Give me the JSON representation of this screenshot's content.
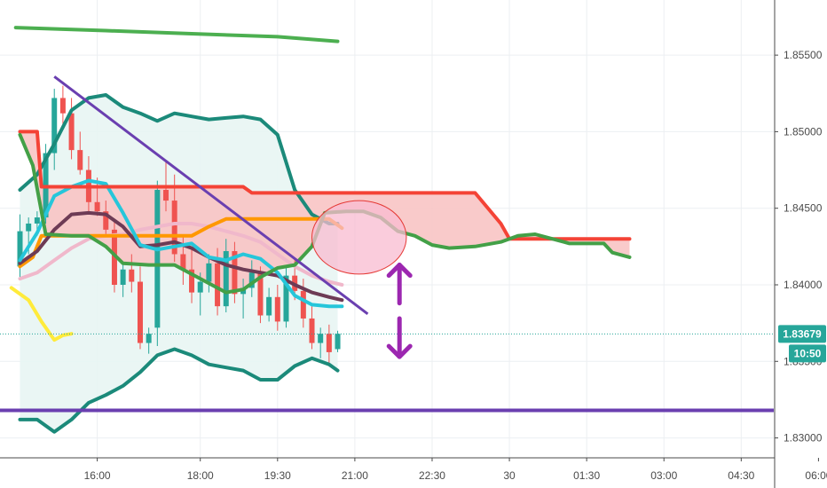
{
  "chart_data": {
    "type": "line",
    "title": "",
    "xlabel": "",
    "ylabel": "",
    "grid": true,
    "x_axis": {
      "range": [
        "14:30",
        "07:00"
      ],
      "ticks": [
        {
          "label": "16:00",
          "t": 90
        },
        {
          "label": "18:00",
          "t": 210
        },
        {
          "label": "19:30",
          "t": 300
        },
        {
          "label": "21:00",
          "t": 390
        },
        {
          "label": "22:30",
          "t": 480
        },
        {
          "label": "30",
          "t": 570
        },
        {
          "label": "01:30",
          "t": 660
        },
        {
          "label": "03:00",
          "t": 750
        },
        {
          "label": "04:30",
          "t": 840
        },
        {
          "label": "06:00",
          "t": 930
        }
      ]
    },
    "y_axis": {
      "range": [
        1.8287,
        1.8586
      ],
      "ticks": [
        "1.85500",
        "1.85000",
        "1.84500",
        "1.84000",
        "1.83500",
        "1.83000"
      ],
      "tick_values": [
        1.855,
        1.85,
        1.845,
        1.84,
        1.835,
        1.83
      ]
    },
    "current_price": {
      "label": "1.83679",
      "value": 1.83679,
      "color": "#26a69a"
    },
    "countdown": {
      "label": "10:50",
      "color": "#26a69a"
    },
    "candles": [
      {
        "t": 0,
        "o": 1.8412,
        "h": 1.8446,
        "l": 1.8405,
        "c": 1.8435
      },
      {
        "t": 10,
        "o": 1.8435,
        "h": 1.8444,
        "l": 1.842,
        "c": 1.844
      },
      {
        "t": 20,
        "o": 1.844,
        "h": 1.8448,
        "l": 1.8432,
        "c": 1.8444
      },
      {
        "t": 30,
        "o": 1.8444,
        "h": 1.8492,
        "l": 1.844,
        "c": 1.8486
      },
      {
        "t": 40,
        "o": 1.8486,
        "h": 1.8528,
        "l": 1.8475,
        "c": 1.8522
      },
      {
        "t": 50,
        "o": 1.8522,
        "h": 1.853,
        "l": 1.8505,
        "c": 1.8512
      },
      {
        "t": 60,
        "o": 1.8512,
        "h": 1.8522,
        "l": 1.8482,
        "c": 1.8488
      },
      {
        "t": 70,
        "o": 1.8488,
        "h": 1.85,
        "l": 1.8472,
        "c": 1.8475
      },
      {
        "t": 80,
        "o": 1.8475,
        "h": 1.8484,
        "l": 1.8448,
        "c": 1.8454
      },
      {
        "t": 90,
        "o": 1.8454,
        "h": 1.847,
        "l": 1.8445,
        "c": 1.8448
      },
      {
        "t": 100,
        "o": 1.8448,
        "h": 1.8455,
        "l": 1.8432,
        "c": 1.8436
      },
      {
        "t": 110,
        "o": 1.8436,
        "h": 1.8442,
        "l": 1.8395,
        "c": 1.84
      },
      {
        "t": 120,
        "o": 1.84,
        "h": 1.8414,
        "l": 1.8392,
        "c": 1.841
      },
      {
        "t": 130,
        "o": 1.841,
        "h": 1.842,
        "l": 1.8395,
        "c": 1.8402
      },
      {
        "t": 140,
        "o": 1.8402,
        "h": 1.8412,
        "l": 1.8358,
        "c": 1.8362
      },
      {
        "t": 150,
        "o": 1.8362,
        "h": 1.8372,
        "l": 1.8355,
        "c": 1.8368
      },
      {
        "t": 160,
        "o": 1.8372,
        "h": 1.8468,
        "l": 1.836,
        "c": 1.8462
      },
      {
        "t": 170,
        "o": 1.8462,
        "h": 1.848,
        "l": 1.8448,
        "c": 1.8455
      },
      {
        "t": 180,
        "o": 1.8455,
        "h": 1.8472,
        "l": 1.8415,
        "c": 1.842
      },
      {
        "t": 190,
        "o": 1.842,
        "h": 1.8432,
        "l": 1.84,
        "c": 1.841
      },
      {
        "t": 200,
        "o": 1.841,
        "h": 1.8424,
        "l": 1.8388,
        "c": 1.8395
      },
      {
        "t": 210,
        "o": 1.8395,
        "h": 1.8408,
        "l": 1.838,
        "c": 1.8402
      },
      {
        "t": 220,
        "o": 1.8402,
        "h": 1.842,
        "l": 1.8395,
        "c": 1.8414
      },
      {
        "t": 230,
        "o": 1.8414,
        "h": 1.8424,
        "l": 1.838,
        "c": 1.8386
      },
      {
        "t": 240,
        "o": 1.8386,
        "h": 1.843,
        "l": 1.8382,
        "c": 1.8422
      },
      {
        "t": 250,
        "o": 1.8422,
        "h": 1.8428,
        "l": 1.8388,
        "c": 1.8394
      },
      {
        "t": 260,
        "o": 1.8394,
        "h": 1.8404,
        "l": 1.8378,
        "c": 1.8398
      },
      {
        "t": 270,
        "o": 1.8398,
        "h": 1.8416,
        "l": 1.8392,
        "c": 1.8408
      },
      {
        "t": 280,
        "o": 1.8408,
        "h": 1.8412,
        "l": 1.8375,
        "c": 1.838
      },
      {
        "t": 290,
        "o": 1.838,
        "h": 1.8398,
        "l": 1.8376,
        "c": 1.8392
      },
      {
        "t": 300,
        "o": 1.8392,
        "h": 1.84,
        "l": 1.837,
        "c": 1.8376
      },
      {
        "t": 310,
        "o": 1.8376,
        "h": 1.8412,
        "l": 1.8372,
        "c": 1.8406
      },
      {
        "t": 320,
        "o": 1.8406,
        "h": 1.8416,
        "l": 1.839,
        "c": 1.8396
      },
      {
        "t": 330,
        "o": 1.8396,
        "h": 1.8404,
        "l": 1.8372,
        "c": 1.8378
      },
      {
        "t": 340,
        "o": 1.8378,
        "h": 1.8386,
        "l": 1.8358,
        "c": 1.8362
      },
      {
        "t": 350,
        "o": 1.8362,
        "h": 1.8372,
        "l": 1.8352,
        "c": 1.8368
      },
      {
        "t": 360,
        "o": 1.8368,
        "h": 1.8374,
        "l": 1.8348,
        "c": 1.8356
      },
      {
        "t": 370,
        "o": 1.8358,
        "h": 1.837,
        "l": 1.8356,
        "c": 1.8368
      }
    ],
    "series": [
      {
        "role": "upper-envelope",
        "color": "#4caf50",
        "width": 4,
        "points": [
          [
            -5,
            1.8568
          ],
          [
            100,
            1.8566
          ],
          [
            200,
            1.8564
          ],
          [
            300,
            1.8562
          ],
          [
            370,
            1.8559
          ]
        ]
      },
      {
        "role": "bollinger-upper",
        "color": "#1b8a7a",
        "width": 4,
        "points": [
          [
            0,
            1.8462
          ],
          [
            20,
            1.8472
          ],
          [
            40,
            1.8492
          ],
          [
            60,
            1.8514
          ],
          [
            80,
            1.8522
          ],
          [
            100,
            1.8524
          ],
          [
            120,
            1.8516
          ],
          [
            140,
            1.8512
          ],
          [
            160,
            1.8507
          ],
          [
            180,
            1.8512
          ],
          [
            200,
            1.851
          ],
          [
            220,
            1.8508
          ],
          [
            240,
            1.8509
          ],
          [
            260,
            1.851
          ],
          [
            280,
            1.8508
          ],
          [
            300,
            1.8498
          ],
          [
            320,
            1.8462
          ],
          [
            340,
            1.8446
          ],
          [
            360,
            1.844
          ],
          [
            370,
            1.844
          ]
        ]
      },
      {
        "role": "bollinger-lower",
        "color": "#1b8a7a",
        "width": 4,
        "points": [
          [
            0,
            1.8312
          ],
          [
            20,
            1.8312
          ],
          [
            40,
            1.8304
          ],
          [
            60,
            1.8312
          ],
          [
            80,
            1.8323
          ],
          [
            100,
            1.8328
          ],
          [
            120,
            1.8334
          ],
          [
            140,
            1.8343
          ],
          [
            160,
            1.8354
          ],
          [
            180,
            1.8358
          ],
          [
            200,
            1.8354
          ],
          [
            220,
            1.8348
          ],
          [
            240,
            1.8346
          ],
          [
            260,
            1.8344
          ],
          [
            280,
            1.8338
          ],
          [
            300,
            1.8338
          ],
          [
            320,
            1.8347
          ],
          [
            340,
            1.8352
          ],
          [
            360,
            1.8348
          ],
          [
            370,
            1.8344
          ]
        ]
      },
      {
        "role": "ichimoku-span-a",
        "color": "#43a047",
        "width": 4,
        "points": [
          [
            0,
            1.8498
          ],
          [
            15,
            1.8478
          ],
          [
            30,
            1.8433
          ],
          [
            60,
            1.8432
          ],
          [
            80,
            1.8432
          ],
          [
            100,
            1.8425
          ],
          [
            120,
            1.8414
          ],
          [
            150,
            1.8413
          ],
          [
            180,
            1.8413
          ],
          [
            210,
            1.8404
          ],
          [
            240,
            1.8395
          ],
          [
            260,
            1.8397
          ],
          [
            280,
            1.8405
          ],
          [
            300,
            1.8411
          ],
          [
            320,
            1.8413
          ],
          [
            340,
            1.8425
          ],
          [
            355,
            1.8447
          ],
          [
            380,
            1.8448
          ],
          [
            400,
            1.8448
          ],
          [
            420,
            1.8444
          ],
          [
            440,
            1.8435
          ],
          [
            460,
            1.8432
          ],
          [
            480,
            1.8426
          ],
          [
            500,
            1.8424
          ],
          [
            530,
            1.8425
          ],
          [
            560,
            1.8428
          ],
          [
            580,
            1.8432
          ],
          [
            600,
            1.8433
          ],
          [
            620,
            1.843
          ],
          [
            640,
            1.8427
          ],
          [
            660,
            1.8427
          ],
          [
            680,
            1.8427
          ],
          [
            690,
            1.8421
          ],
          [
            710,
            1.8418
          ]
        ]
      },
      {
        "role": "ichimoku-span-b",
        "color": "#f44336",
        "width": 4,
        "points": [
          [
            0,
            1.85
          ],
          [
            20,
            1.85
          ],
          [
            25,
            1.8464
          ],
          [
            60,
            1.8464
          ],
          [
            100,
            1.8464
          ],
          [
            200,
            1.8464
          ],
          [
            260,
            1.8464
          ],
          [
            270,
            1.846
          ],
          [
            330,
            1.846
          ],
          [
            420,
            1.846
          ],
          [
            480,
            1.846
          ],
          [
            530,
            1.846
          ],
          [
            560,
            1.844
          ],
          [
            570,
            1.843
          ],
          [
            600,
            1.843
          ],
          [
            650,
            1.843
          ],
          [
            710,
            1.843
          ]
        ]
      },
      {
        "role": "base-line",
        "color": "#ff9800",
        "width": 4,
        "points": [
          [
            0,
            1.8412
          ],
          [
            15,
            1.8418
          ],
          [
            25,
            1.8432
          ],
          [
            60,
            1.8432
          ],
          [
            120,
            1.8432
          ],
          [
            200,
            1.8432
          ],
          [
            220,
            1.8438
          ],
          [
            240,
            1.8443
          ],
          [
            300,
            1.8443
          ],
          [
            360,
            1.8443
          ],
          [
            375,
            1.8437
          ]
        ]
      },
      {
        "role": "conversion-line",
        "color": "#26c6da",
        "width": 4,
        "points": [
          [
            0,
            1.8416
          ],
          [
            20,
            1.8434
          ],
          [
            40,
            1.8458
          ],
          [
            60,
            1.8464
          ],
          [
            80,
            1.8468
          ],
          [
            100,
            1.8466
          ],
          [
            120,
            1.8447
          ],
          [
            140,
            1.8426
          ],
          [
            160,
            1.8423
          ],
          [
            180,
            1.8425
          ],
          [
            200,
            1.8427
          ],
          [
            220,
            1.8418
          ],
          [
            240,
            1.8416
          ],
          [
            260,
            1.842
          ],
          [
            280,
            1.8417
          ],
          [
            300,
            1.8408
          ],
          [
            320,
            1.8393
          ],
          [
            340,
            1.8387
          ],
          [
            360,
            1.8386
          ],
          [
            375,
            1.8386
          ]
        ]
      },
      {
        "role": "moving-average-dark",
        "color": "#6d3b55",
        "width": 4,
        "points": [
          [
            0,
            1.8414
          ],
          [
            20,
            1.8422
          ],
          [
            40,
            1.8436
          ],
          [
            60,
            1.8446
          ],
          [
            80,
            1.8447
          ],
          [
            100,
            1.8446
          ],
          [
            120,
            1.8438
          ],
          [
            140,
            1.8425
          ],
          [
            160,
            1.8426
          ],
          [
            180,
            1.8428
          ],
          [
            200,
            1.8424
          ],
          [
            220,
            1.8418
          ],
          [
            240,
            1.8413
          ],
          [
            260,
            1.841
          ],
          [
            280,
            1.8408
          ],
          [
            300,
            1.8406
          ],
          [
            320,
            1.84
          ],
          [
            340,
            1.8395
          ],
          [
            360,
            1.8392
          ],
          [
            375,
            1.839
          ]
        ]
      },
      {
        "role": "moving-average-pink",
        "color": "#f0b8cb",
        "width": 4,
        "points": [
          [
            0,
            1.8404
          ],
          [
            20,
            1.8408
          ],
          [
            40,
            1.8416
          ],
          [
            60,
            1.8424
          ],
          [
            80,
            1.843
          ],
          [
            100,
            1.8432
          ],
          [
            120,
            1.8433
          ],
          [
            140,
            1.8436
          ],
          [
            160,
            1.8438
          ],
          [
            180,
            1.844
          ],
          [
            200,
            1.844
          ],
          [
            220,
            1.8438
          ],
          [
            240,
            1.8435
          ],
          [
            260,
            1.8432
          ],
          [
            280,
            1.8428
          ],
          [
            300,
            1.842
          ],
          [
            320,
            1.8412
          ],
          [
            340,
            1.8406
          ],
          [
            360,
            1.8402
          ],
          [
            375,
            1.84
          ]
        ]
      },
      {
        "role": "moving-average-yellow",
        "color": "#ffeb3b",
        "width": 4,
        "points": [
          [
            -10,
            1.8398
          ],
          [
            10,
            1.839
          ],
          [
            25,
            1.8376
          ],
          [
            40,
            1.8364
          ],
          [
            50,
            1.8367
          ],
          [
            60,
            1.8368
          ]
        ]
      }
    ],
    "shaded_areas": [
      {
        "role": "bollinger-fill",
        "color": "#e8f5f3",
        "between": [
          "bollinger-upper",
          "bollinger-lower"
        ]
      },
      {
        "role": "ichimoku-cloud",
        "color": "#f8c4c4",
        "between": [
          "ichimoku-span-a",
          "ichimoku-span-b"
        ]
      }
    ],
    "horizontal_lines": [
      {
        "role": "support-line",
        "color": "#6a3fb0",
        "y": 1.8318
      }
    ],
    "trend_lines": [
      {
        "role": "descending-trendline",
        "color": "#6a3fb0",
        "from": [
          40,
          1.8536
        ],
        "to": [
          405,
          1.8381
        ]
      }
    ],
    "annotations": [
      {
        "role": "highlight-ellipse",
        "color": "#f8bbd0",
        "stroke": "#e53935",
        "center": [
          395,
          1.8431
        ],
        "rx_time": 55,
        "ry_price": 0.0024
      },
      {
        "role": "up-down-arrows",
        "color": "#9c27b0",
        "t": 442,
        "top": 1.8413,
        "gap_top": 1.8388,
        "gap_bottom": 1.8378,
        "bottom": 1.8353
      }
    ]
  }
}
